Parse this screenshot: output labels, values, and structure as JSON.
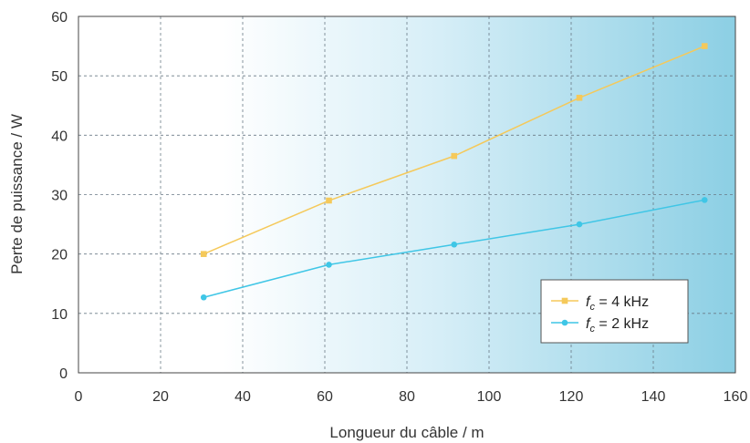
{
  "chart_data": {
    "type": "line",
    "title": "",
    "xlabel": "Longueur du câble / m",
    "ylabel": "Perte de puissance / W",
    "xlim": [
      0,
      160
    ],
    "ylim": [
      0,
      60
    ],
    "xticks": [
      0,
      20,
      40,
      60,
      80,
      100,
      120,
      140,
      160
    ],
    "yticks": [
      0,
      10,
      20,
      30,
      40,
      50,
      60
    ],
    "grid": true,
    "legend_position": "bottom-right",
    "series": [
      {
        "name_var": "f",
        "name_sub": "c",
        "name_rest": " = 4 kHz",
        "color": "#f5c95a",
        "marker": "square",
        "x": [
          30.5,
          61,
          91.5,
          122,
          152.5
        ],
        "y": [
          20,
          29,
          36.5,
          46.3,
          55
        ]
      },
      {
        "name_var": "f",
        "name_sub": "c",
        "name_rest": " = 2 kHz",
        "color": "#3fc6e6",
        "marker": "circle",
        "x": [
          30.5,
          61,
          91.5,
          122,
          152.5
        ],
        "y": [
          12.7,
          18.2,
          21.6,
          25,
          29.1
        ]
      }
    ]
  }
}
